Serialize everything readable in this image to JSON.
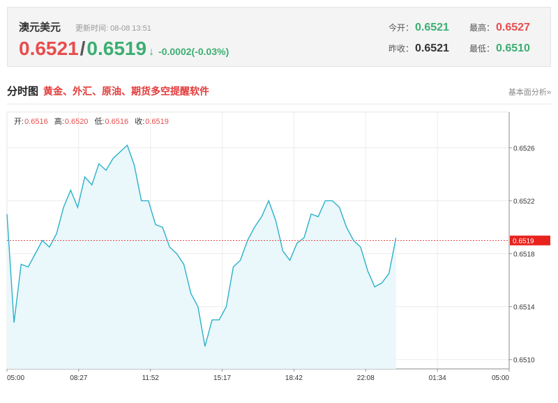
{
  "header": {
    "pair_name": "澳元美元",
    "update_time": "更新时间: 08-08 13:51",
    "bid": "0.6521",
    "slash": "/",
    "ask": "0.6519",
    "arrow": "↓",
    "change": "-0.0002(-0.03%)",
    "stats": {
      "open_label": "今开：",
      "open_value": "0.6521",
      "high_label": "最高：",
      "high_value": "0.6527",
      "prev_close_label": "昨收：",
      "prev_close_value": "0.6521",
      "low_label": "最低：",
      "low_value": "0.6510"
    }
  },
  "section": {
    "title": "分时图",
    "promo": "黄金、外汇、原油、期货多空提醒软件",
    "fundamental": "基本面分析»"
  },
  "colors": {
    "red": "#e84d4d",
    "green": "#3cae72",
    "line": "#2ab1c9",
    "fill": "#eaf7fb"
  },
  "chart_data": {
    "type": "area",
    "ohlc_labels": [
      {
        "label": "开:",
        "value": "0.6516"
      },
      {
        "label": "高:",
        "value": "0.6520"
      },
      {
        "label": "低:",
        "value": "0.6516"
      },
      {
        "label": "收:",
        "value": "0.6519"
      }
    ],
    "x_ticks": [
      "05:00",
      "08:27",
      "11:52",
      "15:17",
      "18:42",
      "22:08",
      "01:34",
      "05:00"
    ],
    "y_ticks": [
      "0.6510",
      "0.6514",
      "0.6518",
      "0.6522",
      "0.6526"
    ],
    "ylim": [
      0.65093,
      0.65287
    ],
    "x_slots": 71,
    "current_price": 0.6519,
    "current_price_label": "0.6519",
    "series": [
      {
        "values": [
          0.6521,
          0.65128,
          0.65172,
          0.6517,
          0.6518,
          0.6519,
          0.65185,
          0.65195,
          0.65215,
          0.65228,
          0.65215,
          0.65238,
          0.65232,
          0.65248,
          0.65243,
          0.65252,
          0.65257,
          0.65262,
          0.65247,
          0.6522,
          0.6522,
          0.65202,
          0.652,
          0.65185,
          0.6518,
          0.65172,
          0.6515,
          0.6514,
          0.6511,
          0.6513,
          0.6513,
          0.6514,
          0.6517,
          0.65175,
          0.6519,
          0.652,
          0.65208,
          0.6522,
          0.65205,
          0.65182,
          0.65175,
          0.65188,
          0.65192,
          0.6521,
          0.65208,
          0.6522,
          0.6522,
          0.65215,
          0.652,
          0.6519,
          0.65185,
          0.65167,
          0.65155,
          0.65158,
          0.65165,
          0.65192
        ]
      }
    ]
  }
}
